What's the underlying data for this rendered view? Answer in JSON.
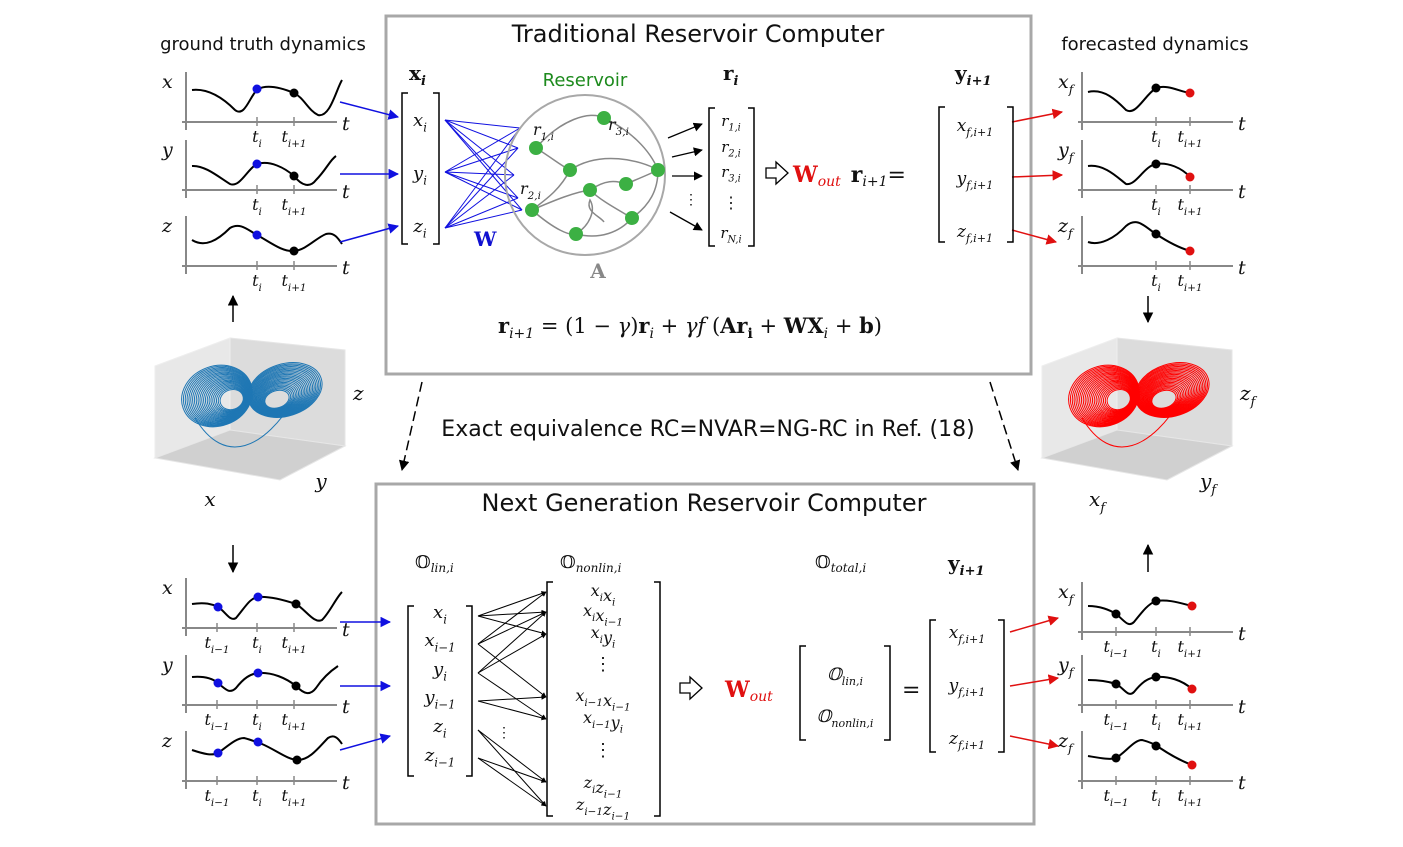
{
  "headings": {
    "ground_truth": "ground truth dynamics",
    "forecasted": "forecasted dynamics",
    "equivalence": "Exact equivalence RC=NVAR=NG-RC in Ref. (18)"
  },
  "rc": {
    "title": "Traditional Reservoir Computer",
    "input_label": "x",
    "input_sub": "i",
    "input_vector": [
      [
        "x",
        "i"
      ],
      [
        "y",
        "i"
      ],
      [
        "z",
        "i"
      ]
    ],
    "input_weight": "W",
    "reservoir_label": "Reservoir",
    "adjacency": "A",
    "node_labels": [
      [
        "r",
        "1,i"
      ],
      [
        "r",
        "3,i"
      ],
      [
        "r",
        "2,i"
      ]
    ],
    "state_label": "r",
    "state_sub": "i",
    "state_vector": [
      [
        "r",
        "1,i"
      ],
      [
        "r",
        "2,i"
      ],
      [
        "r",
        "3,i"
      ],
      [
        "",
        "⋮"
      ],
      [
        "r",
        "N,i"
      ]
    ],
    "readout": "W",
    "readout_sub": "out",
    "readout_rhs": "r",
    "readout_rhs_sub": "i+1",
    "readout_eq": "=",
    "output_label": "y",
    "output_sub": "i+1",
    "output_vector": [
      [
        "x",
        "f,i+1"
      ],
      [
        "y",
        "f,i+1"
      ],
      [
        "z",
        "f,i+1"
      ]
    ],
    "update_equation": "r_{i+1} = (1 − γ) r_i + γ f (A r_i + W X_i + b)"
  },
  "ngrc": {
    "title": "Next Generation Reservoir Computer",
    "lin_label": "𝕆",
    "lin_sub": "lin,i",
    "nonlin_label": "𝕆",
    "nonlin_sub": "nonlin,i",
    "total_label": "𝕆",
    "total_sub": "total,i",
    "output_label": "y",
    "output_sub": "i+1",
    "lin_vector": [
      "x_i",
      "x_{i−1}",
      "y_i",
      "y_{i−1}",
      "z_i",
      "z_{i−1}"
    ],
    "nonlin_vector": [
      "x_i x_i",
      "x_i x_{i−1}",
      "x_i y_i",
      "⋮",
      "x_{i−1} x_{i−1}",
      "x_{i−1} y_i",
      "⋮",
      "z_i z_{i−1}",
      "z_{i−1} z_{i−1}"
    ],
    "readout": "W",
    "readout_sub": "out",
    "total_vector": [
      [
        "𝕆",
        "lin,i"
      ],
      [
        "𝕆",
        "nonlin,i"
      ]
    ],
    "equals": "=",
    "output_vector": [
      [
        "x",
        "f,i+1"
      ],
      [
        "y",
        "f,i+1"
      ],
      [
        "z",
        "f,i+1"
      ]
    ]
  },
  "plots": {
    "time_axis": "t",
    "truth_vars": [
      "x",
      "y",
      "z"
    ],
    "forecast_vars": [
      [
        "x",
        "f"
      ],
      [
        "y",
        "f"
      ],
      [
        "z",
        "f"
      ]
    ],
    "tick_i": [
      "t",
      "i"
    ],
    "tick_next": [
      "t",
      "i+1"
    ],
    "tick_prev": [
      "t",
      "i−1"
    ]
  },
  "attractors": {
    "truth_axes": [
      "x",
      "y",
      "z"
    ],
    "forecast_axes": [
      [
        "x",
        "f"
      ],
      [
        "y",
        "f"
      ],
      [
        "z",
        "f"
      ]
    ],
    "truth_color": "#1f77b4",
    "forecast_color": "#ff0000"
  },
  "colors": {
    "input_arrows": "#1010e0",
    "forecast_arrows": "#e01010",
    "node": "#3cb043",
    "box": "#a8a8a8",
    "dot_blue": "#1010e0",
    "dot_black": "#000000",
    "dot_red": "#e01010"
  }
}
